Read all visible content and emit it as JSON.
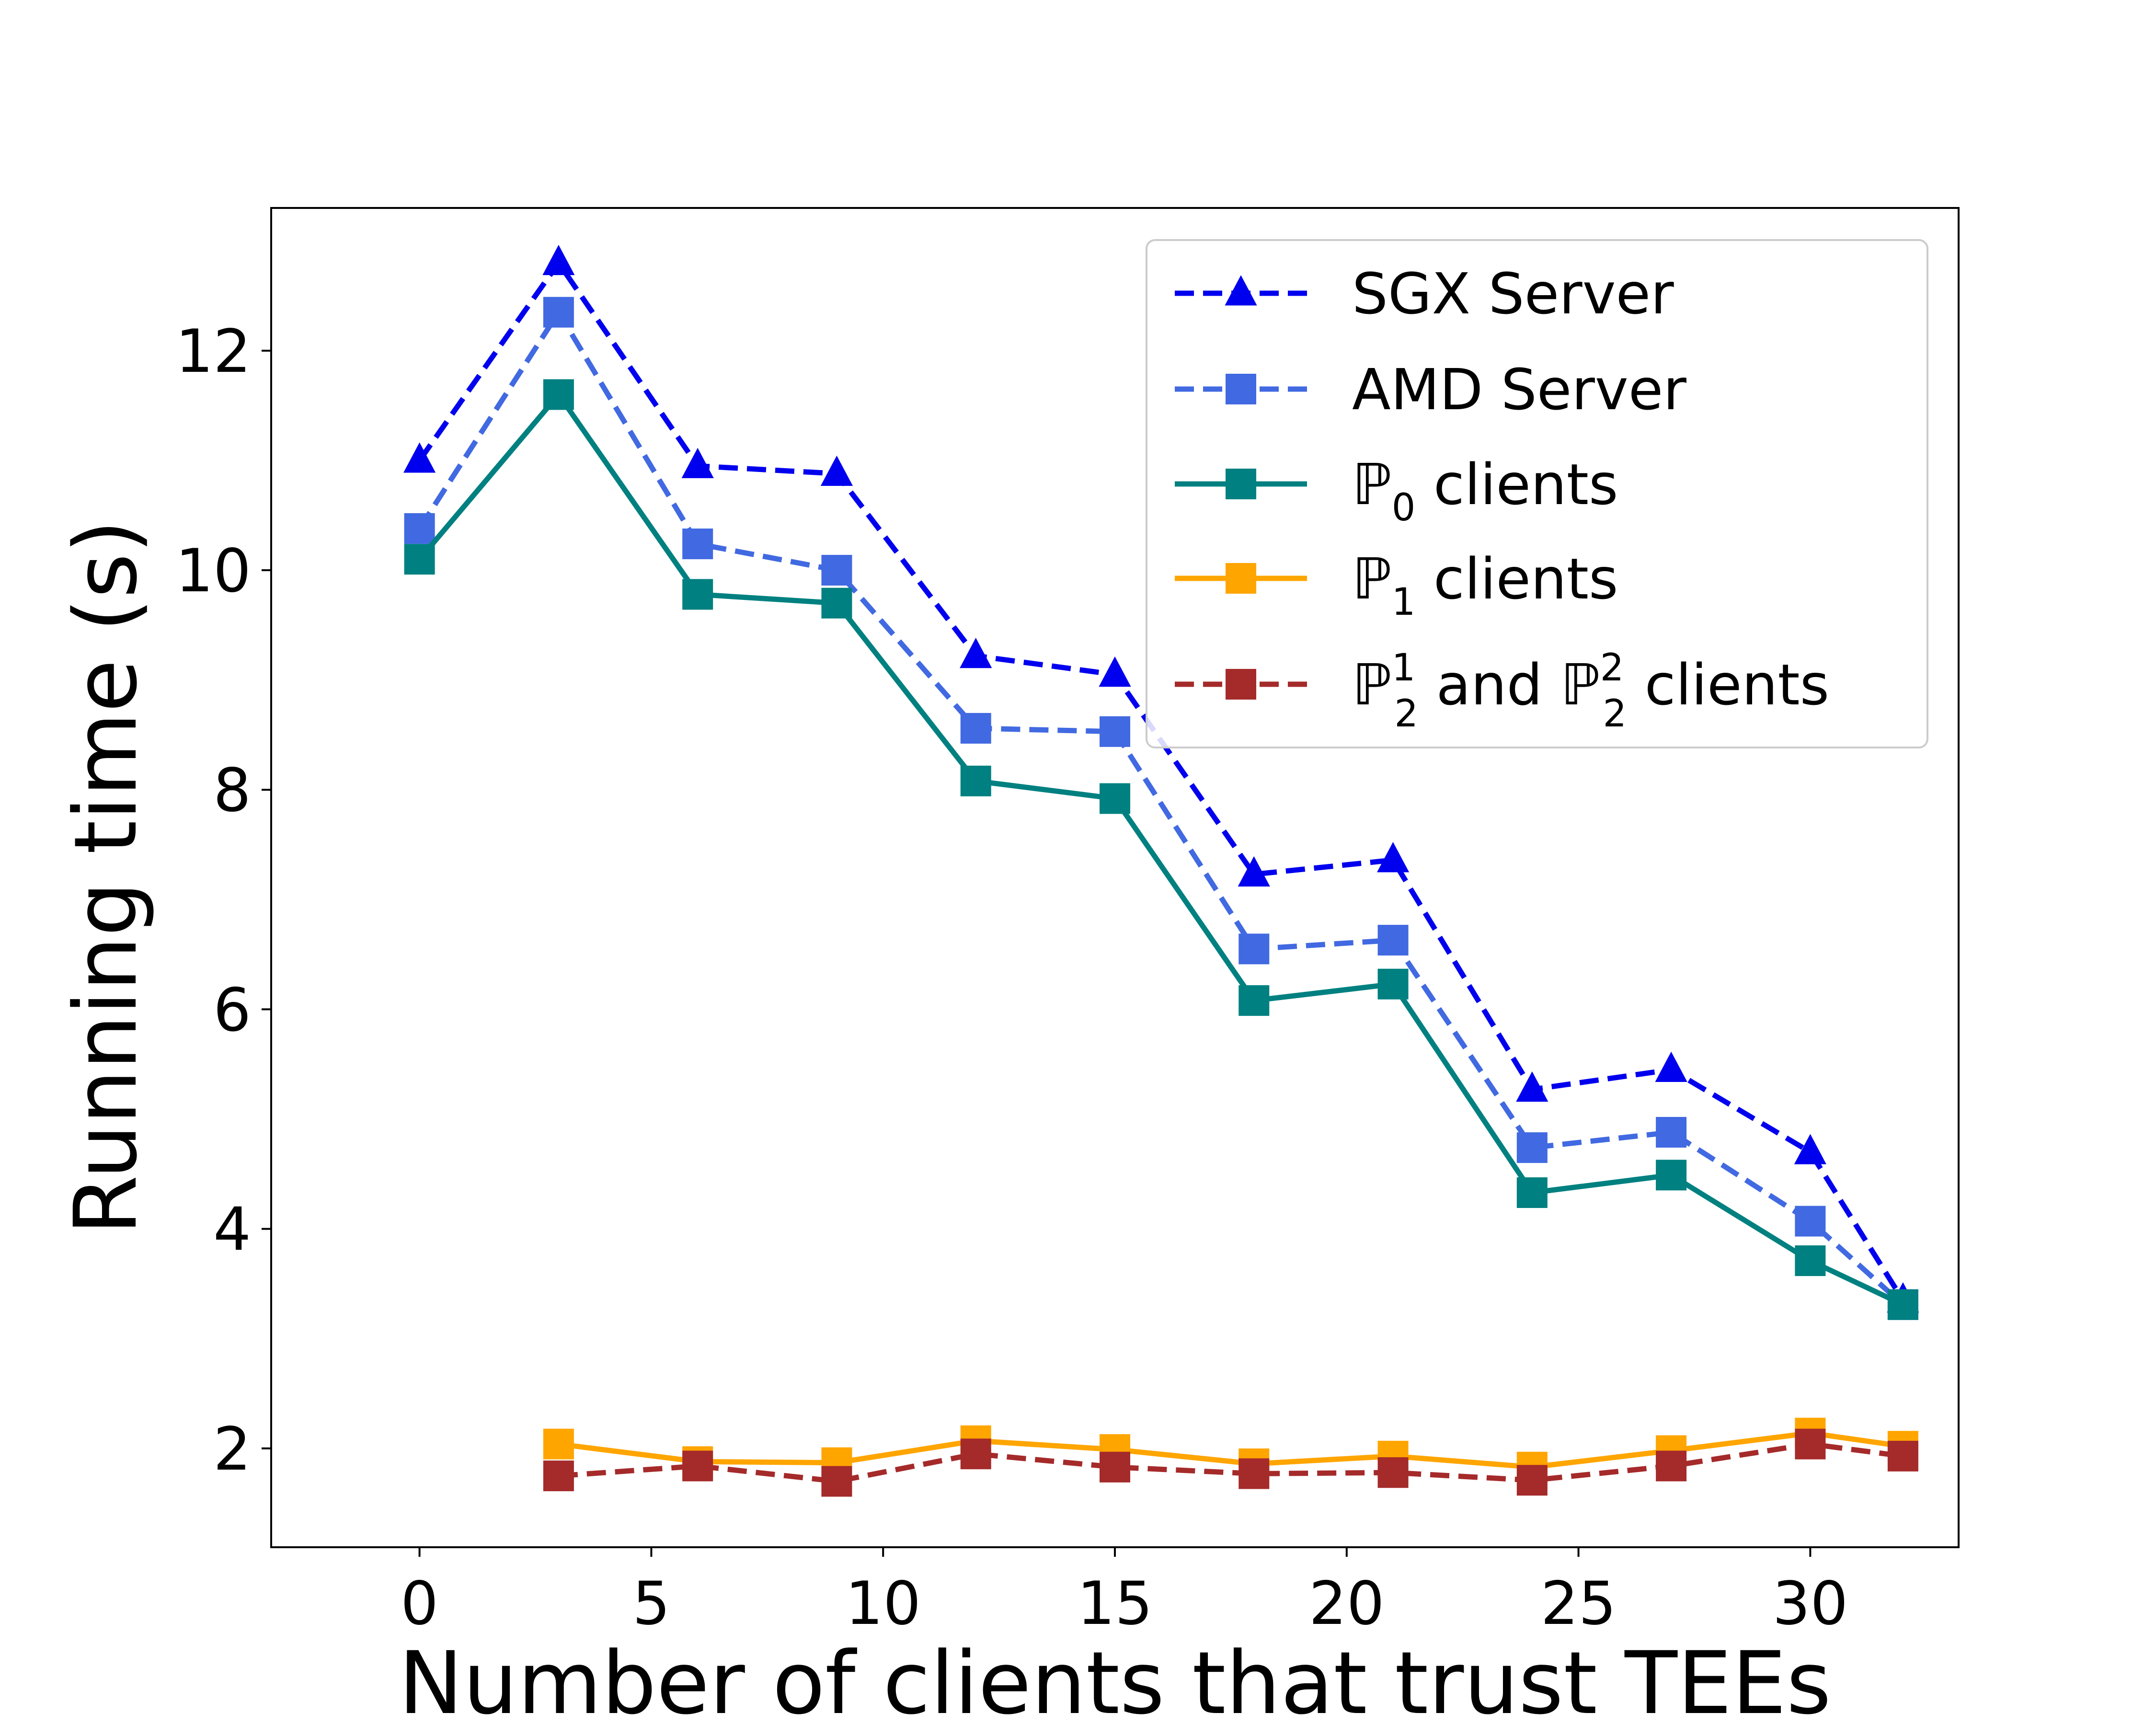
{
  "chart_data": {
    "type": "line",
    "xlabel": "Number of clients that trust TEEs",
    "ylabel": "Running time (s)",
    "xlim": [
      -3.2,
      33.2
    ],
    "ylim": [
      1.1,
      13.3
    ],
    "xticks": [
      0,
      5,
      10,
      15,
      20,
      25,
      30
    ],
    "yticks": [
      2,
      4,
      6,
      8,
      10,
      12
    ],
    "grid": false,
    "legend_position": "top-right",
    "series": [
      {
        "name": "SGX Server",
        "legend_main": "SGX Server",
        "legend_sub": "",
        "legend_sup": "",
        "legend_rest": "",
        "color": "#0000ee",
        "dash": true,
        "marker": "triangle",
        "x": [
          0,
          3,
          6,
          9,
          12,
          15,
          18,
          21,
          24,
          27,
          30,
          32
        ],
        "y": [
          11.0,
          12.8,
          10.95,
          10.88,
          9.22,
          9.05,
          7.23,
          7.36,
          5.27,
          5.45,
          4.7,
          3.35
        ]
      },
      {
        "name": "AMD Server",
        "legend_main": "AMD Server",
        "legend_sub": "",
        "legend_sup": "",
        "legend_rest": "",
        "color": "#4169e1",
        "dash": true,
        "marker": "square",
        "x": [
          0,
          3,
          6,
          9,
          12,
          15,
          18,
          21,
          24,
          27,
          30,
          32
        ],
        "y": [
          10.38,
          12.35,
          10.24,
          10.0,
          8.56,
          8.53,
          6.55,
          6.63,
          4.74,
          4.88,
          4.07,
          3.31
        ]
      },
      {
        "name": "ℙ0 clients",
        "legend_main": "ℙ",
        "legend_sub": "0",
        "legend_sup": "",
        "legend_rest": " clients",
        "color": "#008080",
        "dash": false,
        "marker": "square",
        "x": [
          0,
          3,
          6,
          9,
          12,
          15,
          18,
          21,
          24,
          27,
          30,
          32
        ],
        "y": [
          10.1,
          11.6,
          9.78,
          9.7,
          8.08,
          7.92,
          6.08,
          6.23,
          4.33,
          4.49,
          3.71,
          3.31
        ]
      },
      {
        "name": "ℙ1 clients",
        "legend_main": "ℙ",
        "legend_sub": "1",
        "legend_sup": "",
        "legend_rest": " clients",
        "color": "#ffa500",
        "dash": false,
        "marker": "square",
        "x": [
          3,
          6,
          9,
          12,
          15,
          18,
          21,
          24,
          27,
          30,
          32
        ],
        "y": [
          2.04,
          1.88,
          1.87,
          2.07,
          1.99,
          1.86,
          1.93,
          1.83,
          1.98,
          2.14,
          2.02
        ]
      },
      {
        "name": "ℙ21 and ℙ22 clients",
        "legend_main": "ℙ",
        "legend_sub": "2",
        "legend_sup": "1",
        "legend_rest": " and ℙ",
        "legend_sub2": "2",
        "legend_sup2": "2",
        "legend_rest2": " clients",
        "color": "#a52a2a",
        "dash": true,
        "marker": "square",
        "x": [
          3,
          6,
          9,
          12,
          15,
          18,
          21,
          24,
          27,
          30,
          32
        ],
        "y": [
          1.75,
          1.84,
          1.7,
          1.95,
          1.83,
          1.77,
          1.78,
          1.71,
          1.84,
          2.04,
          1.93
        ]
      }
    ]
  }
}
